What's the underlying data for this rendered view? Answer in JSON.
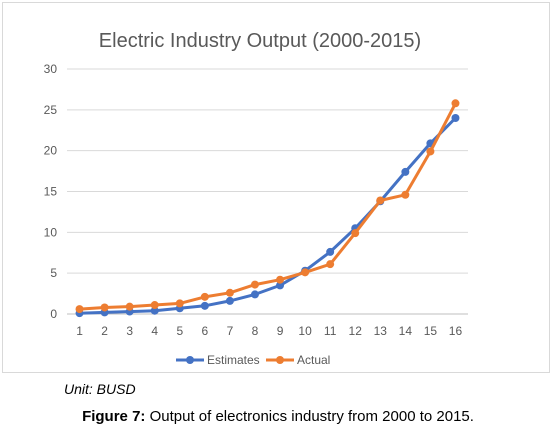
{
  "chart_data": {
    "type": "line",
    "title": "Electric Industry Output (2000-2015)",
    "xlabel": "",
    "ylabel": "",
    "categories": [
      "1",
      "2",
      "3",
      "4",
      "5",
      "6",
      "7",
      "8",
      "9",
      "10",
      "11",
      "12",
      "13",
      "14",
      "15",
      "16"
    ],
    "ylim": [
      0,
      30
    ],
    "yticks": [
      "0",
      "5",
      "10",
      "15",
      "20",
      "25",
      "30"
    ],
    "grid": true,
    "legend_position": "bottom",
    "series": [
      {
        "name": "Estimates",
        "color": "#4472c4",
        "values": [
          0.1,
          0.2,
          0.3,
          0.4,
          0.7,
          1.0,
          1.6,
          2.4,
          3.5,
          5.3,
          7.6,
          10.5,
          13.8,
          17.4,
          20.9,
          24.0
        ]
      },
      {
        "name": "Actual",
        "color": "#ed7d31",
        "values": [
          0.6,
          0.8,
          0.9,
          1.1,
          1.3,
          2.1,
          2.6,
          3.6,
          4.2,
          5.1,
          6.1,
          9.9,
          13.9,
          14.6,
          19.9,
          25.8
        ]
      }
    ]
  },
  "notes": {
    "unit": "Unit: BUSD"
  },
  "caption": {
    "figure_label": "Figure 7:",
    "text": " Output of electronics industry from 2000 to 2015."
  }
}
